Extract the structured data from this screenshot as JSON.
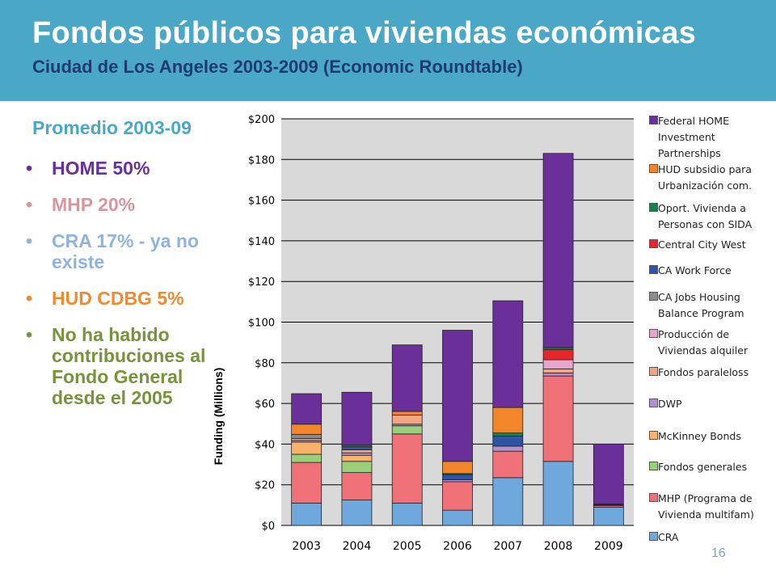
{
  "slide": {
    "title": "Fondos públicos para viviendas económicas",
    "subtitle": "Ciudad de Los Angeles 2003-2009 (Economic Roundtable)",
    "page_number": "16",
    "banner_color": "#4aa8c6"
  },
  "summary": {
    "heading": "Promedio 2003-09",
    "bullets": [
      {
        "text": "HOME 50%",
        "color": "#6b2f9a"
      },
      {
        "text": "MHP 20%",
        "color": "#d9969b"
      },
      {
        "text": "CRA 17% - ya no existe",
        "color": "#8fb3df"
      },
      {
        "text": "HUD CDBG 5%",
        "color": "#f08a2e"
      },
      {
        "text": "No ha habido contribuciones al Fondo General desde el 2005",
        "color": "#77933c"
      }
    ]
  },
  "chart_data": {
    "type": "bar",
    "stacked": true,
    "ylabel": "Funding (Millions)",
    "ylim": [
      0,
      200
    ],
    "yticks": [
      "$0",
      "$20",
      "$40",
      "$60",
      "$80",
      "$100",
      "$120",
      "$140",
      "$160",
      "$180",
      "$200"
    ],
    "categories": [
      "2003",
      "2004",
      "2005",
      "2006",
      "2007",
      "2008",
      "2009"
    ],
    "grid": true,
    "legend_position": "right",
    "series": [
      {
        "name": "CRA",
        "color": "#6fa8dc",
        "values": [
          11,
          12.5,
          11,
          7.5,
          23.5,
          31.5,
          9
        ]
      },
      {
        "name": "MHP (Programa de Vivienda multifam)",
        "color": "#f07178",
        "values": [
          20,
          13.5,
          34,
          14,
          13,
          42,
          0.7
        ]
      },
      {
        "name": "Fondos generales",
        "color": "#9bd07a",
        "values": [
          4,
          5.5,
          4,
          0,
          0,
          0,
          0
        ]
      },
      {
        "name": "McKinney Bonds",
        "color": "#fbb26b",
        "values": [
          6,
          3,
          0,
          0,
          0,
          0,
          0
        ]
      },
      {
        "name": "DWP",
        "color": "#b191cc",
        "values": [
          0.8,
          1.2,
          0.8,
          1.0,
          2.5,
          1.5,
          0
        ]
      },
      {
        "name": "Fondos paraleloss",
        "color": "#f4a582",
        "values": [
          1,
          1.5,
          4.5,
          0,
          0,
          2,
          0
        ]
      },
      {
        "name": "Producción de Viviendas alquiler",
        "color": "#e7a6cc",
        "values": [
          0,
          0,
          0,
          0,
          0,
          4.5,
          0
        ]
      },
      {
        "name": "CA Jobs Housing Balance Program",
        "color": "#8c8c8c",
        "values": [
          2,
          0,
          0,
          0,
          0,
          0,
          0
        ]
      },
      {
        "name": "CA Work Force",
        "color": "#2e55a4",
        "values": [
          0,
          1.5,
          0,
          2.5,
          5,
          0,
          0
        ]
      },
      {
        "name": "Central City West",
        "color": "#e8262a",
        "values": [
          0,
          0,
          0,
          0,
          0,
          5,
          0
        ]
      },
      {
        "name": "Oport. Vivienda  a Personas con SIDA",
        "color": "#1a7f4a",
        "values": [
          0,
          0.8,
          0,
          0.5,
          1.5,
          1,
          0.5
        ]
      },
      {
        "name": "HUD subsidio para Urbanización com.",
        "color": "#f3862a",
        "values": [
          5,
          0,
          1.8,
          6,
          12.5,
          0,
          0.3
        ]
      },
      {
        "name": "Federal HOME Investment Partnerships",
        "color": "#6b2f9a",
        "values": [
          15,
          26,
          32.7,
          64.5,
          52.5,
          95.5,
          29.5
        ]
      }
    ]
  }
}
